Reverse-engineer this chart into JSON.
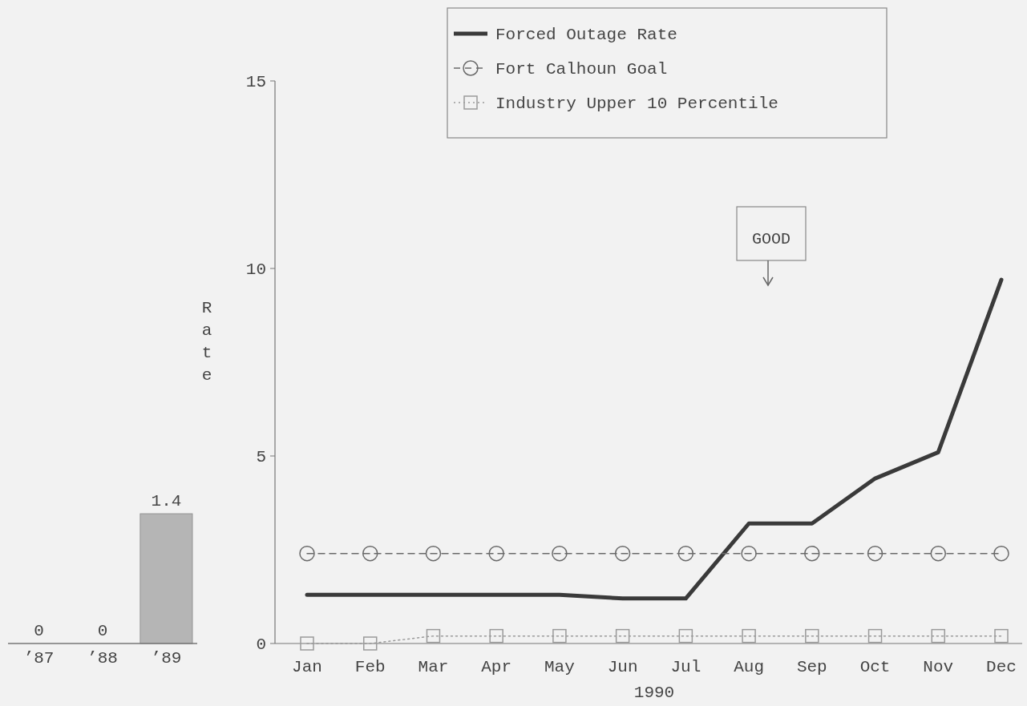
{
  "chart_data": [
    {
      "type": "bar",
      "categories": [
        "’87",
        "’88",
        "’89"
      ],
      "values": [
        0,
        0,
        1.4
      ],
      "color": "#b5b5b5",
      "data_labels": true
    },
    {
      "type": "line",
      "categories": [
        "Jan",
        "Feb",
        "Mar",
        "Apr",
        "May",
        "Jun",
        "Jul",
        "Aug",
        "Sep",
        "Oct",
        "Nov",
        "Dec"
      ],
      "xlabel": "1990",
      "ylabel": "Rate",
      "ylim": [
        0,
        15
      ],
      "yticks": [
        0,
        5,
        10,
        15
      ],
      "legend": "top right",
      "annotations": [
        "GOOD"
      ],
      "series": [
        {
          "name": "Forced Outage Rate",
          "color": "#3a3a3a",
          "line_style": "solid",
          "marker": "none",
          "values": [
            1.3,
            1.3,
            1.3,
            1.3,
            1.3,
            1.2,
            1.2,
            3.2,
            3.2,
            4.4,
            5.1,
            9.7
          ]
        },
        {
          "name": "Fort Calhoun Goal",
          "color": "#6a6a6a",
          "line_style": "dashed",
          "marker": "circle",
          "values": [
            2.4,
            2.4,
            2.4,
            2.4,
            2.4,
            2.4,
            2.4,
            2.4,
            2.4,
            2.4,
            2.4,
            2.4
          ]
        },
        {
          "name": "Industry Upper 10 Percentile",
          "color": "#9a9a9a",
          "line_style": "dotted",
          "marker": "square",
          "values": [
            0,
            0,
            0.2,
            0.2,
            0.2,
            0.2,
            0.2,
            0.2,
            0.2,
            0.2,
            0.2,
            0.2
          ]
        }
      ]
    }
  ]
}
